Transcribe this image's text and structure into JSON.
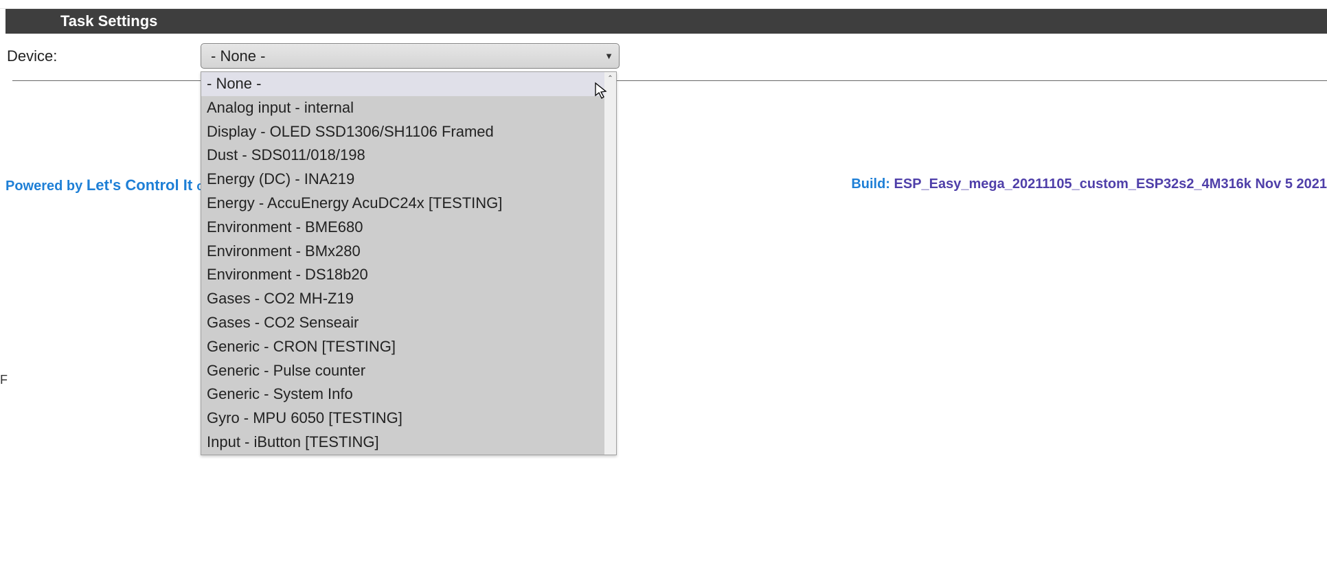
{
  "header": {
    "title": "Task Settings"
  },
  "device": {
    "label": "Device:",
    "selected": "- None -",
    "options": [
      "- None -",
      "Analog input - internal",
      "Display - OLED SSD1306/SH1106 Framed",
      "Dust - SDS011/018/198",
      "Energy (DC) - INA219",
      "Energy - AccuEnergy AcuDC24x [TESTING]",
      "Environment - BME680",
      "Environment - BMx280",
      "Environment - DS18b20",
      "Gases - CO2 MH-Z19",
      "Gases - CO2 Senseair",
      "Generic - CRON [TESTING]",
      "Generic - Pulse counter",
      "Generic - System Info",
      "Gyro - MPU 6050 [TESTING]",
      "Input - iButton [TESTING]"
    ]
  },
  "footer": {
    "powered_by_prefix": "Powered by ",
    "powered_by_link": "Let's Control It ",
    "powered_by_suffix": "commu",
    "build_label": "Build: ",
    "build_value": "ESP_Easy_mega_20211105_custom_ESP32s2_4M316k Nov 5 2021"
  },
  "fragment": {
    "left_char": "F"
  },
  "colors": {
    "header_bg": "#3e3e3e",
    "link_blue": "#1e7fd6",
    "build_purple": "#4f3fa9",
    "dropdown_bg": "#cdcdcd",
    "dropdown_selected_bg": "#e0e0e9"
  }
}
